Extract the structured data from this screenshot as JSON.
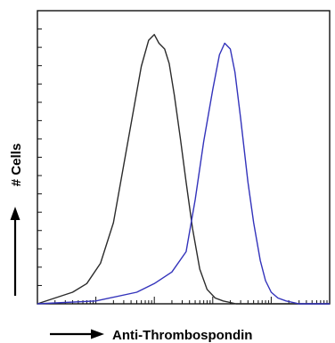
{
  "chart_data": {
    "type": "line",
    "title": "",
    "xlabel": "Anti-Thrombospondin",
    "ylabel": "# Cells",
    "x_scale": "log",
    "xlim": [
      1,
      100000
    ],
    "ylim": [
      0,
      100
    ],
    "grid": false,
    "legend": "none",
    "series": [
      {
        "color": "#2b2b2b",
        "points": [
          [
            1,
            0
          ],
          [
            2,
            2
          ],
          [
            4,
            4
          ],
          [
            7,
            7
          ],
          [
            12,
            14
          ],
          [
            20,
            28
          ],
          [
            30,
            48
          ],
          [
            45,
            68
          ],
          [
            60,
            82
          ],
          [
            80,
            91
          ],
          [
            100,
            93
          ],
          [
            120,
            90
          ],
          [
            150,
            88
          ],
          [
            180,
            83
          ],
          [
            220,
            72
          ],
          [
            280,
            57
          ],
          [
            350,
            42
          ],
          [
            450,
            26
          ],
          [
            600,
            12
          ],
          [
            800,
            5
          ],
          [
            1100,
            2
          ],
          [
            1500,
            1
          ],
          [
            2500,
            0
          ],
          [
            100000,
            0
          ]
        ]
      },
      {
        "color": "#3333bb",
        "points": [
          [
            1,
            0
          ],
          [
            10,
            1
          ],
          [
            50,
            4
          ],
          [
            100,
            7
          ],
          [
            200,
            11
          ],
          [
            350,
            18
          ],
          [
            500,
            36
          ],
          [
            700,
            56
          ],
          [
            1000,
            74
          ],
          [
            1300,
            86
          ],
          [
            1600,
            90
          ],
          [
            2000,
            88
          ],
          [
            2400,
            80
          ],
          [
            3000,
            64
          ],
          [
            4000,
            42
          ],
          [
            5000,
            28
          ],
          [
            6500,
            15
          ],
          [
            8000,
            8
          ],
          [
            10000,
            4
          ],
          [
            13000,
            2
          ],
          [
            18000,
            1
          ],
          [
            30000,
            0
          ],
          [
            100000,
            0
          ]
        ]
      }
    ],
    "line_colors": {
      "control": "#2b2b2b",
      "stained": "#3333bb",
      "arrows": "#000000"
    }
  }
}
